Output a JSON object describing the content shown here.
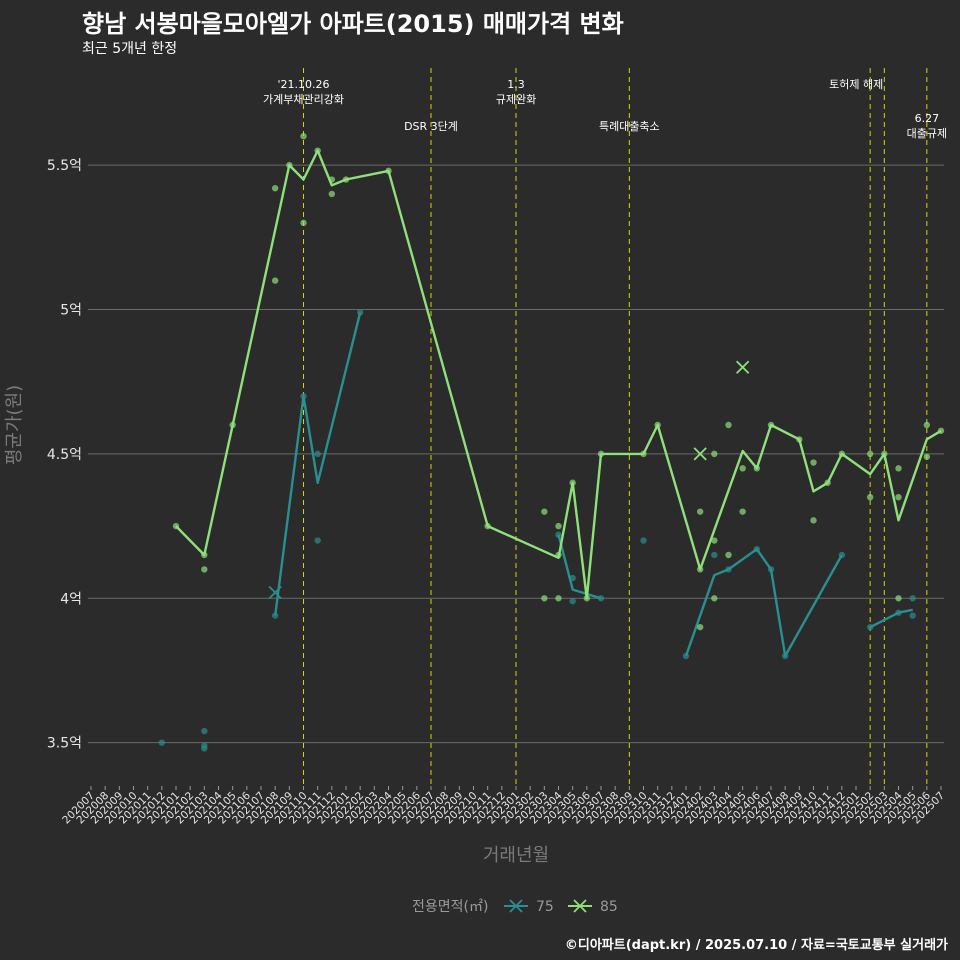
{
  "chart_data": {
    "type": "line",
    "title": "향남 서봉마을모아엘가 아파트(2015) 매매가격 변화",
    "subtitle": "최근 5개년 한정",
    "credit": "©디아파트(dapt.kr) / 2025.07.10 / 자료=국토교통부 실거래가",
    "xlabel": "거래년월",
    "ylabel": "평균가(원)",
    "ylim": [
      3.35,
      5.85
    ],
    "y_ticks": [
      3.5,
      4.0,
      4.5,
      5.0,
      5.5
    ],
    "y_tick_labels": [
      "3.5억",
      "4억",
      "4.5억",
      "5억",
      "5.5억"
    ],
    "categories": [
      "202007",
      "202008",
      "202009",
      "202010",
      "202011",
      "202012",
      "202101",
      "202102",
      "202103",
      "202104",
      "202105",
      "202106",
      "202107",
      "202108",
      "202109",
      "202110",
      "202111",
      "202112",
      "202201",
      "202202",
      "202203",
      "202204",
      "202205",
      "202206",
      "202207",
      "202208",
      "202209",
      "202210",
      "202211",
      "202212",
      "202301",
      "202302",
      "202303",
      "202304",
      "202305",
      "202306",
      "202307",
      "202308",
      "202309",
      "202310",
      "202311",
      "202312",
      "202401",
      "202402",
      "202403",
      "202404",
      "202405",
      "202406",
      "202407",
      "202408",
      "202409",
      "202410",
      "202411",
      "202412",
      "202501",
      "202502",
      "202503",
      "202504",
      "202505",
      "202506",
      "202507"
    ],
    "grid": true,
    "legend_title": "전용면적(㎡)",
    "legend_position": "bottom",
    "series": [
      {
        "name": "75",
        "color": "#2a8f8f",
        "line_segments": [
          [
            [
              "202108",
              3.94
            ],
            [
              "202110",
              4.7
            ],
            [
              "202111",
              4.4
            ],
            [
              "202202",
              4.99
            ]
          ],
          [
            [
              "202304",
              4.22
            ],
            [
              "202305",
              4.03
            ],
            [
              "202307",
              4.0
            ]
          ],
          [
            [
              "202401",
              3.8
            ],
            [
              "202403",
              4.08
            ],
            [
              "202404",
              4.1
            ],
            [
              "202406",
              4.17
            ],
            [
              "202407",
              4.1
            ],
            [
              "202408",
              3.8
            ],
            [
              "202412",
              4.15
            ]
          ],
          [
            [
              "202502",
              3.9
            ],
            [
              "202504",
              3.95
            ],
            [
              "202505",
              3.96
            ]
          ]
        ],
        "points": [
          [
            "202012",
            3.5
          ],
          [
            "202103",
            3.54
          ],
          [
            "202103",
            3.48
          ],
          [
            "202103",
            3.49
          ],
          [
            "202108",
            3.94
          ],
          [
            "202110",
            4.7
          ],
          [
            "202111",
            4.5
          ],
          [
            "202111",
            4.2
          ],
          [
            "202202",
            4.99
          ],
          [
            "202304",
            4.22
          ],
          [
            "202305",
            4.07
          ],
          [
            "202305",
            3.99
          ],
          [
            "202307",
            4.0
          ],
          [
            "202310",
            4.2
          ],
          [
            "202401",
            3.8
          ],
          [
            "202403",
            4.15
          ],
          [
            "202404",
            4.1
          ],
          [
            "202406",
            4.17
          ],
          [
            "202407",
            4.1
          ],
          [
            "202408",
            3.8
          ],
          [
            "202412",
            4.15
          ],
          [
            "202502",
            3.9
          ],
          [
            "202504",
            3.95
          ],
          [
            "202505",
            4.0
          ],
          [
            "202505",
            3.94
          ]
        ],
        "single_marks": [
          [
            "202108",
            4.02
          ]
        ]
      },
      {
        "name": "85",
        "color": "#8fe07a",
        "line_segments": [
          [
            [
              "202101",
              4.25
            ],
            [
              "202103",
              4.15
            ],
            [
              "202105",
              4.6
            ],
            [
              "202109",
              5.5
            ],
            [
              "202110",
              5.45
            ],
            [
              "202111",
              5.55
            ],
            [
              "202112",
              5.43
            ],
            [
              "202201",
              5.45
            ],
            [
              "202204",
              5.48
            ],
            [
              "202211",
              4.25
            ],
            [
              "202304",
              4.14
            ],
            [
              "202305",
              4.4
            ],
            [
              "202306",
              4.0
            ],
            [
              "202307",
              4.5
            ],
            [
              "202310",
              4.5
            ],
            [
              "202311",
              4.6
            ],
            [
              "202402",
              4.1
            ],
            [
              "202405",
              4.51
            ],
            [
              "202406",
              4.45
            ],
            [
              "202407",
              4.6
            ],
            [
              "202409",
              4.55
            ],
            [
              "202410",
              4.37
            ],
            [
              "202411",
              4.4
            ],
            [
              "202412",
              4.5
            ],
            [
              "202502",
              4.43
            ],
            [
              "202503",
              4.5
            ],
            [
              "202504",
              4.27
            ],
            [
              "202506",
              4.55
            ],
            [
              "202507",
              4.58
            ]
          ]
        ],
        "points": [
          [
            "202101",
            4.25
          ],
          [
            "202103",
            4.15
          ],
          [
            "202103",
            4.1
          ],
          [
            "202105",
            4.6
          ],
          [
            "202108",
            5.42
          ],
          [
            "202108",
            5.1
          ],
          [
            "202109",
            5.5
          ],
          [
            "202110",
            5.6
          ],
          [
            "202110",
            5.3
          ],
          [
            "202111",
            5.55
          ],
          [
            "202112",
            5.45
          ],
          [
            "202112",
            5.4
          ],
          [
            "202201",
            5.45
          ],
          [
            "202204",
            5.48
          ],
          [
            "202211",
            4.25
          ],
          [
            "202303",
            4.3
          ],
          [
            "202303",
            4.0
          ],
          [
            "202304",
            4.25
          ],
          [
            "202304",
            4.15
          ],
          [
            "202304",
            4.0
          ],
          [
            "202305",
            4.4
          ],
          [
            "202306",
            4.0
          ],
          [
            "202307",
            4.5
          ],
          [
            "202310",
            4.5
          ],
          [
            "202311",
            4.6
          ],
          [
            "202402",
            4.3
          ],
          [
            "202402",
            4.1
          ],
          [
            "202402",
            3.9
          ],
          [
            "202403",
            4.5
          ],
          [
            "202403",
            4.2
          ],
          [
            "202403",
            4.0
          ],
          [
            "202404",
            4.6
          ],
          [
            "202404",
            4.15
          ],
          [
            "202405",
            4.45
          ],
          [
            "202405",
            4.3
          ],
          [
            "202406",
            4.45
          ],
          [
            "202407",
            4.6
          ],
          [
            "202409",
            4.55
          ],
          [
            "202410",
            4.47
          ],
          [
            "202410",
            4.27
          ],
          [
            "202411",
            4.4
          ],
          [
            "202412",
            4.5
          ],
          [
            "202502",
            4.5
          ],
          [
            "202502",
            4.35
          ],
          [
            "202503",
            4.5
          ],
          [
            "202504",
            4.45
          ],
          [
            "202504",
            4.35
          ],
          [
            "202504",
            4.0
          ],
          [
            "202506",
            4.6
          ],
          [
            "202506",
            4.49
          ],
          [
            "202507",
            4.58
          ]
        ],
        "single_marks": [
          [
            "202402",
            4.5
          ],
          [
            "202405",
            4.8
          ]
        ]
      }
    ],
    "events": [
      {
        "x": "202110",
        "lines": [
          "'21.10.26",
          "가계부채관리강화"
        ],
        "level": 0
      },
      {
        "x": "202207",
        "lines": [
          "DSR 3단계"
        ],
        "level": 1
      },
      {
        "x": "202301",
        "lines": [
          "1.3",
          "규제완화"
        ],
        "level": 0
      },
      {
        "x": "202309",
        "lines": [
          "특례대출축소"
        ],
        "level": 1
      },
      {
        "x": "202502",
        "lines": [
          "토허제 해제"
        ],
        "level": 0,
        "offset": -1
      },
      {
        "x": "202503",
        "lines": [],
        "level": 0
      },
      {
        "x": "202506",
        "lines": [
          "6.27",
          "대출규제"
        ],
        "level": 2
      }
    ]
  }
}
